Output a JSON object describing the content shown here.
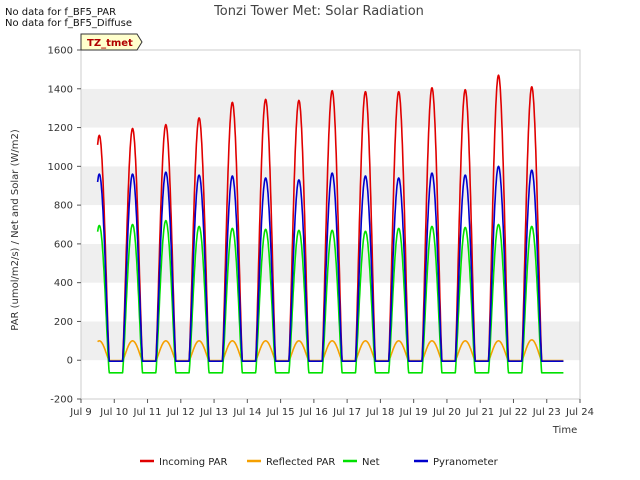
{
  "notices": [
    "No data for f_BF5_PAR",
    "No data for f_BF5_Diffuse"
  ],
  "tag_label": "TZ_tmet",
  "chart_data": {
    "type": "line",
    "title": "Tonzi Tower Met: Solar Radiation",
    "xlabel": "Time",
    "ylabel": "PAR (umol/m2/s) / Net and Solar (W/m2)",
    "xlim": [
      9,
      24
    ],
    "ylim": [
      -200,
      1600
    ],
    "x_ticks": [
      9,
      10,
      11,
      12,
      13,
      14,
      15,
      16,
      17,
      18,
      19,
      20,
      21,
      22,
      23,
      24
    ],
    "x_tick_labels": [
      "Jul 9",
      "Jul 10",
      "Jul 11",
      "Jul 12",
      "Jul 13",
      "Jul 14",
      "Jul 15",
      "Jul 16",
      "Jul 17",
      "Jul 18",
      "Jul 19",
      "Jul 20",
      "Jul 21",
      "Jul 22",
      "Jul 23",
      "Jul 24"
    ],
    "y_ticks": [
      -200,
      0,
      200,
      400,
      600,
      800,
      1000,
      1200,
      1400,
      1600
    ],
    "y_tick_labels": [
      "-200",
      "0",
      "200",
      "400",
      "600",
      "800",
      "1000",
      "1200",
      "1400",
      "1600"
    ],
    "grid": "horizontal bands",
    "legend_position": "bottom",
    "data_start": 9.5,
    "data_end": 23.5,
    "days": [
      9,
      10,
      11,
      12,
      13,
      14,
      15,
      16,
      17,
      18,
      19,
      20,
      21,
      22
    ],
    "sunrise": 0.25,
    "sunset": 0.85,
    "series": [
      {
        "name": "Incoming PAR",
        "color": "#e00000",
        "night": -5,
        "daily_peaks": [
          1160,
          1195,
          1215,
          1250,
          1330,
          1345,
          1340,
          1390,
          1385,
          1385,
          1405,
          1395,
          1470,
          1410
        ]
      },
      {
        "name": "Reflected PAR",
        "color": "#f5a000",
        "night": -2,
        "daily_peaks": [
          100,
          100,
          100,
          100,
          100,
          100,
          100,
          100,
          100,
          100,
          100,
          100,
          100,
          105
        ]
      },
      {
        "name": "Net",
        "color": "#00e000",
        "night": -65,
        "daily_peaks": [
          695,
          700,
          720,
          690,
          680,
          675,
          670,
          670,
          665,
          680,
          690,
          685,
          700,
          690
        ]
      },
      {
        "name": "Pyranometer",
        "color": "#0000cc",
        "night": -5,
        "daily_peaks": [
          960,
          960,
          970,
          955,
          950,
          940,
          930,
          965,
          950,
          940,
          965,
          955,
          1000,
          980
        ]
      }
    ]
  }
}
